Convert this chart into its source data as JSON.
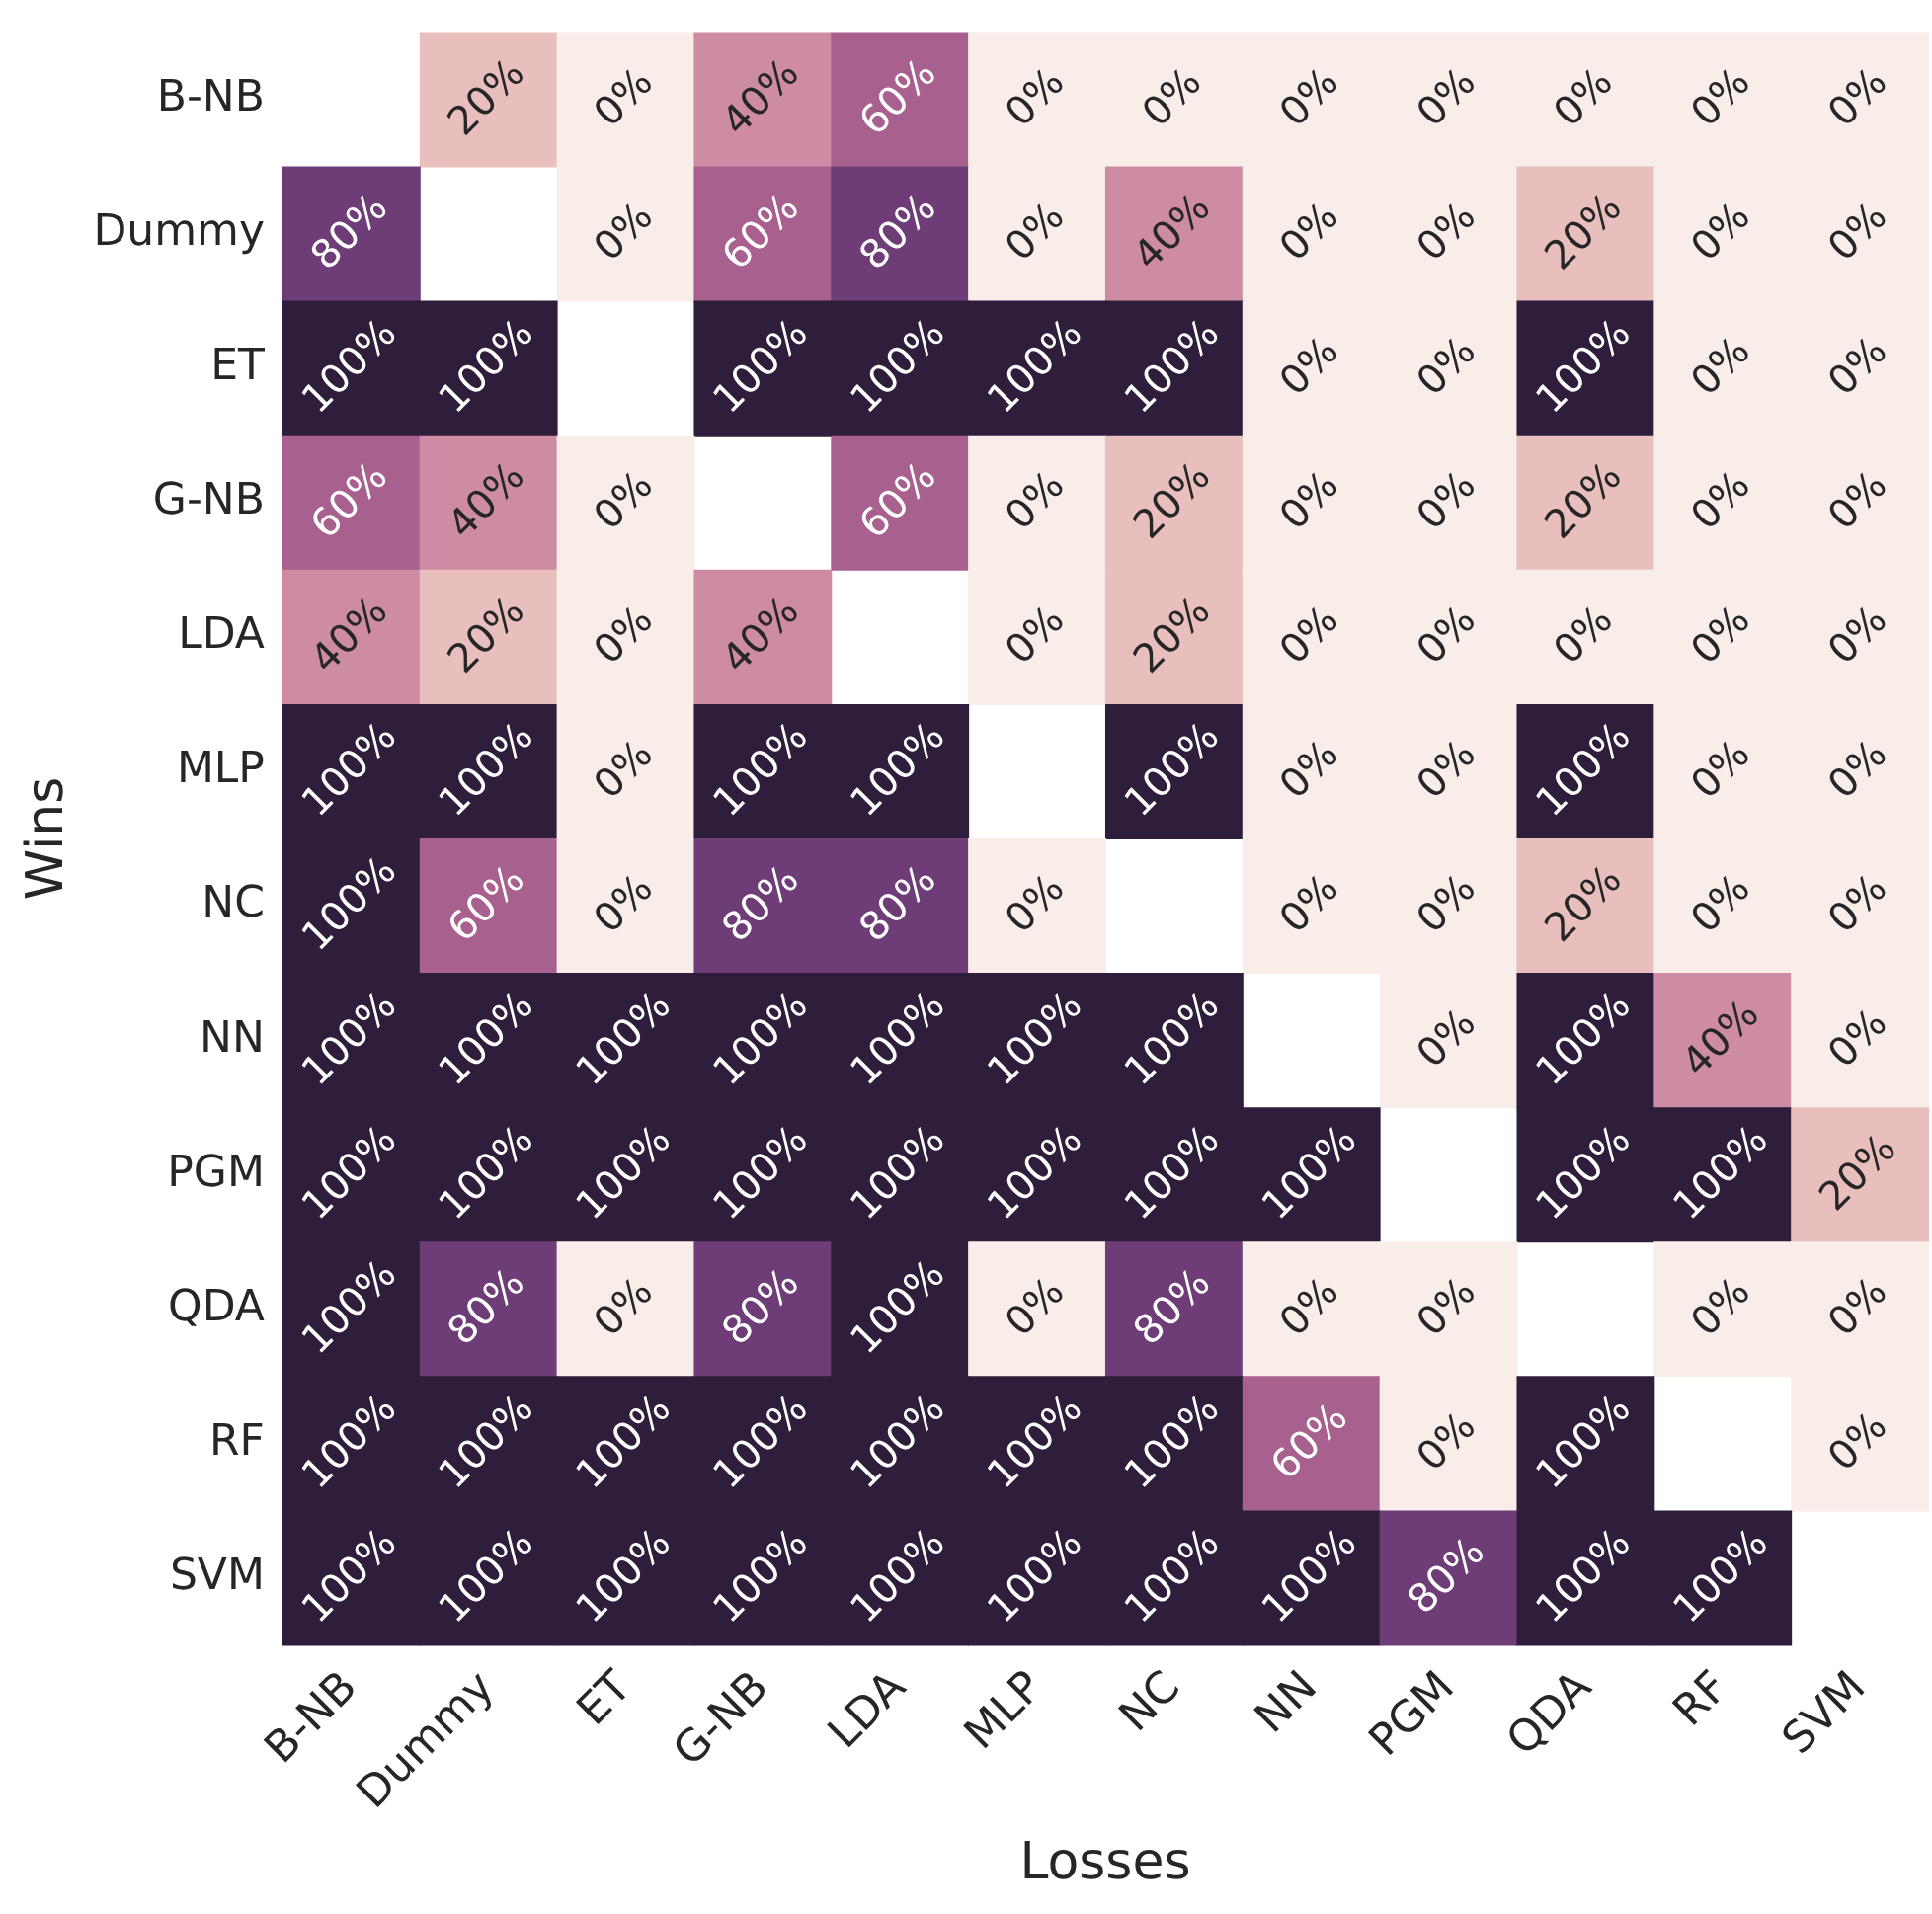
{
  "chart_data": {
    "type": "heatmap",
    "xlabel": "Losses",
    "ylabel": "Wins",
    "categories": [
      "B-NB",
      "Dummy",
      "ET",
      "G-NB",
      "LDA",
      "MLP",
      "NC",
      "NN",
      "PGM",
      "QDA",
      "RF",
      "SVM"
    ],
    "y_categories": [
      "B-NB",
      "Dummy",
      "ET",
      "G-NB",
      "LDA",
      "MLP",
      "NC",
      "NN",
      "PGM",
      "QDA",
      "RF",
      "SVM"
    ],
    "cells": [
      [
        null,
        20,
        0,
        40,
        60,
        0,
        0,
        0,
        0,
        0,
        0,
        0
      ],
      [
        80,
        null,
        0,
        60,
        80,
        0,
        40,
        0,
        0,
        20,
        0,
        0
      ],
      [
        100,
        100,
        null,
        100,
        100,
        100,
        100,
        0,
        0,
        100,
        0,
        0
      ],
      [
        60,
        40,
        0,
        null,
        60,
        0,
        20,
        0,
        0,
        20,
        0,
        0
      ],
      [
        40,
        20,
        0,
        40,
        null,
        0,
        20,
        0,
        0,
        0,
        0,
        0
      ],
      [
        100,
        100,
        0,
        100,
        100,
        null,
        100,
        0,
        0,
        100,
        0,
        0
      ],
      [
        100,
        60,
        0,
        80,
        80,
        0,
        null,
        0,
        0,
        20,
        0,
        0
      ],
      [
        100,
        100,
        100,
        100,
        100,
        100,
        100,
        null,
        0,
        100,
        40,
        0
      ],
      [
        100,
        100,
        100,
        100,
        100,
        100,
        100,
        100,
        null,
        100,
        100,
        20
      ],
      [
        100,
        80,
        0,
        80,
        100,
        0,
        80,
        0,
        0,
        null,
        0,
        0
      ],
      [
        100,
        100,
        100,
        100,
        100,
        100,
        100,
        60,
        0,
        100,
        null,
        0
      ],
      [
        100,
        100,
        100,
        100,
        100,
        100,
        100,
        100,
        80,
        100,
        100,
        null
      ]
    ],
    "cell_labels": [
      [
        null,
        "20%",
        "0%",
        "40%",
        "60%",
        "0%",
        "0%",
        "0%",
        "0%",
        "0%",
        "0%",
        "0%"
      ],
      [
        "80%",
        null,
        "0%",
        "60%",
        "80%",
        "0%",
        "40%",
        "0%",
        "0%",
        "20%",
        "0%",
        "0%"
      ],
      [
        "100%",
        "100%",
        null,
        "100%",
        "100%",
        "100%",
        "100%",
        "0%",
        "0%",
        "100%",
        "0%",
        "0%"
      ],
      [
        "60%",
        "40%",
        "0%",
        null,
        "60%",
        "0%",
        "20%",
        "0%",
        "0%",
        "20%",
        "0%",
        "0%"
      ],
      [
        "40%",
        "20%",
        "0%",
        "40%",
        null,
        "0%",
        "20%",
        "0%",
        "0%",
        "0%",
        "0%",
        "0%"
      ],
      [
        "100%",
        "100%",
        "0%",
        "100%",
        "100%",
        null,
        "100%",
        "0%",
        "0%",
        "100%",
        "0%",
        "0%"
      ],
      [
        "100%",
        "60%",
        "0%",
        "80%",
        "80%",
        "0%",
        null,
        "0%",
        "0%",
        "20%",
        "0%",
        "0%"
      ],
      [
        "100%",
        "100%",
        "100%",
        "100%",
        "100%",
        "100%",
        "100%",
        null,
        "0%",
        "100%",
        "40%",
        "0%"
      ],
      [
        "100%",
        "100%",
        "100%",
        "100%",
        "100%",
        "100%",
        "100%",
        "100%",
        null,
        "100%",
        "100%",
        "20%"
      ],
      [
        "100%",
        "80%",
        "0%",
        "80%",
        "100%",
        "0%",
        "80%",
        "0%",
        "0%",
        null,
        "0%",
        "0%"
      ],
      [
        "100%",
        "100%",
        "100%",
        "100%",
        "100%",
        "100%",
        "100%",
        "60%",
        "0%",
        "100%",
        null,
        "0%"
      ],
      [
        "100%",
        "100%",
        "100%",
        "100%",
        "100%",
        "100%",
        "100%",
        "100%",
        "80%",
        "100%",
        "100%",
        null
      ]
    ],
    "grid": false
  }
}
